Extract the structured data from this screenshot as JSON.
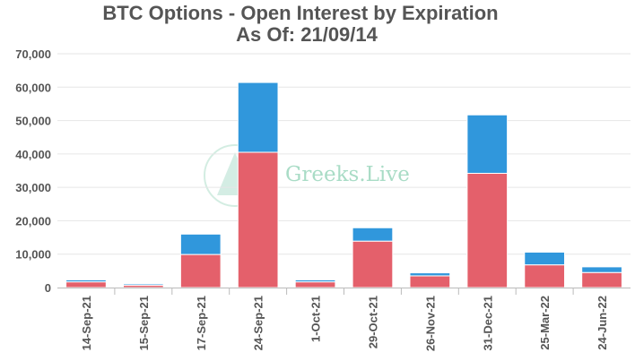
{
  "chart_data": {
    "type": "bar",
    "stacked": true,
    "title": "BTC Options - Open Interest by Expiration",
    "subtitle": "As Of: 21/09/14",
    "categories": [
      "14-Sep-21",
      "15-Sep-21",
      "17-Sep-21",
      "24-Sep-21",
      "1-Oct-21",
      "29-Oct-21",
      "26-Nov-21",
      "31-Dec-21",
      "25-Mar-22",
      "24-Jun-22"
    ],
    "series": [
      {
        "color": "#e4606b",
        "values": [
          1700,
          700,
          9900,
          40500,
          1700,
          13900,
          3500,
          34200,
          6800,
          4500
        ]
      },
      {
        "color": "#3097dc",
        "values": [
          600,
          400,
          6100,
          20900,
          600,
          4000,
          900,
          17500,
          3800,
          1700
        ]
      }
    ],
    "ylim": [
      0,
      70000
    ],
    "yticks": [
      0,
      10000,
      20000,
      30000,
      40000,
      50000,
      60000,
      70000
    ],
    "ytick_labels": [
      "0",
      "10,000",
      "20,000",
      "30,000",
      "40,000",
      "50,000",
      "60,000",
      "70,000"
    ],
    "grid": true,
    "legend": "none",
    "watermark": {
      "text": "Greeks.Live",
      "icon": "greeks-live-logo-icon"
    }
  }
}
